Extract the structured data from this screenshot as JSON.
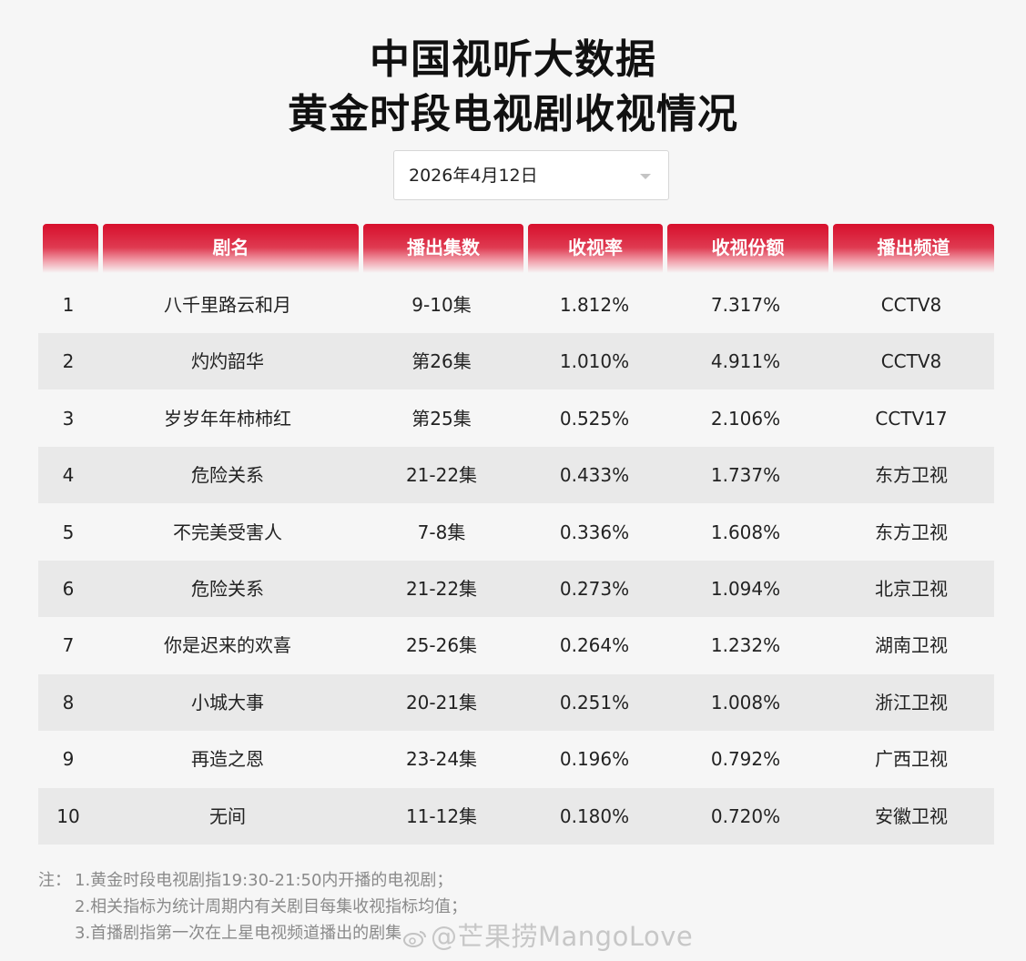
{
  "header": {
    "title_line1": "中国视听大数据",
    "title_line2": "黄金时段电视剧收视情况"
  },
  "date_select": {
    "value": "2026年4月12日"
  },
  "table": {
    "columns": [
      "",
      "剧名",
      "播出集数",
      "收视率",
      "收视份额",
      "播出频道"
    ],
    "rows": [
      [
        "1",
        "八千里路云和月",
        "9-10集",
        "1.812%",
        "7.317%",
        "CCTV8"
      ],
      [
        "2",
        "灼灼韶华",
        "第26集",
        "1.010%",
        "4.911%",
        "CCTV8"
      ],
      [
        "3",
        "岁岁年年柿柿红",
        "第25集",
        "0.525%",
        "2.106%",
        "CCTV17"
      ],
      [
        "4",
        "危险关系",
        "21-22集",
        "0.433%",
        "1.737%",
        "东方卫视"
      ],
      [
        "5",
        "不完美受害人",
        "7-8集",
        "0.336%",
        "1.608%",
        "东方卫视"
      ],
      [
        "6",
        "危险关系",
        "21-22集",
        "0.273%",
        "1.094%",
        "北京卫视"
      ],
      [
        "7",
        "你是迟来的欢喜",
        "25-26集",
        "0.264%",
        "1.232%",
        "湖南卫视"
      ],
      [
        "8",
        "小城大事",
        "20-21集",
        "0.251%",
        "1.008%",
        "浙江卫视"
      ],
      [
        "9",
        "再造之恩",
        "23-24集",
        "0.196%",
        "0.792%",
        "广西卫视"
      ],
      [
        "10",
        "无间",
        "11-12集",
        "0.180%",
        "0.720%",
        "安徽卫视"
      ]
    ]
  },
  "notes": {
    "label": "注：",
    "lines": [
      "1.黄金时段电视剧指19:30-21:50内开播的电视剧；",
      "2.相关指标为统计周期内有关剧目每集收视指标均值；",
      "3.首播剧指第一次在上星电视频道播出的剧集"
    ]
  },
  "watermark": {
    "text": "@芒果捞MangoLove",
    "icon": "weibo-icon"
  },
  "colors": {
    "header_red": "#d70f2c",
    "row_stripe": "#e9e9e9",
    "background": "#f6f6f6"
  }
}
